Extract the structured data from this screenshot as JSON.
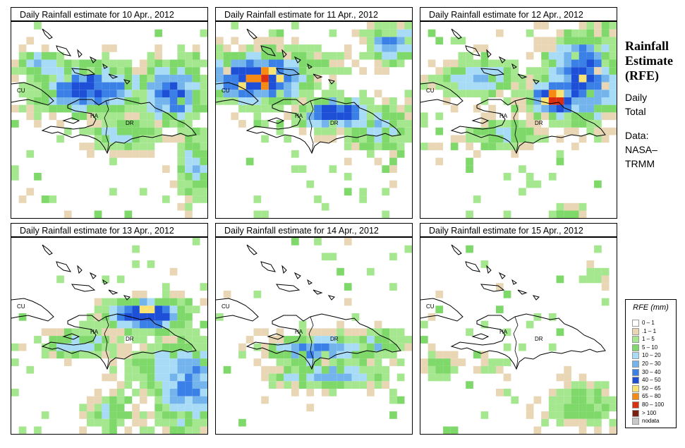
{
  "panels": [
    {
      "title": "Daily Rainfall estimate for  10 Apr., 2012"
    },
    {
      "title": "Daily Rainfall estimate for  11 Apr., 2012"
    },
    {
      "title": "Daily Rainfall estimate for  12 Apr., 2012"
    },
    {
      "title": "Daily Rainfall estimate for  13 Apr., 2012"
    },
    {
      "title": "Daily Rainfall estimate for  14 Apr., 2012"
    },
    {
      "title": "Daily Rainfall estimate for  15 Apr., 2012"
    }
  ],
  "map_labels": {
    "cuba": "CU",
    "haiti": "HA",
    "dominican_republic": "DR"
  },
  "side_panel": {
    "title_line1": "Rainfall",
    "title_line2": "Estimate",
    "title_line3": "(RFE)",
    "daily_line1": "Daily",
    "daily_line2": "Total",
    "data_line1": "Data:",
    "data_line2": "NASA–",
    "data_line3": "TRMM"
  },
  "legend": {
    "title": "RFE (mm)",
    "items": [
      {
        "label": "0 – 1",
        "color": "#ffffff"
      },
      {
        "label": ".1 – 1",
        "color": "#e8d6b4"
      },
      {
        "label": "1 – 5",
        "color": "#a5e78f"
      },
      {
        "label": "5 – 10",
        "color": "#7ed86a"
      },
      {
        "label": "10 – 20",
        "color": "#a8dcf6"
      },
      {
        "label": "20 – 30",
        "color": "#74b4ec"
      },
      {
        "label": "30 – 40",
        "color": "#3b80e6"
      },
      {
        "label": "40 – 50",
        "color": "#1e4fd7"
      },
      {
        "label": "50 – 65",
        "color": "#fae372"
      },
      {
        "label": "65 – 80",
        "color": "#f78a13"
      },
      {
        "label": "80 – 100",
        "color": "#dc2f11"
      },
      {
        "label": "> 100",
        "color": "#7d1e10"
      },
      {
        "label": "nodata",
        "color": "#c8c8c8"
      }
    ]
  }
}
